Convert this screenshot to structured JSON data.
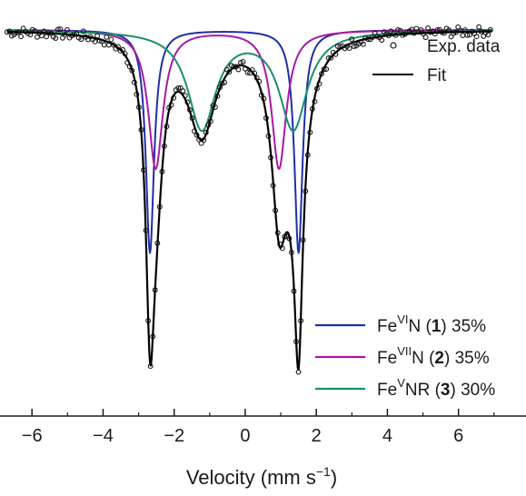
{
  "chart_data": {
    "type": "scatter",
    "xlabel": "Velocity (mm s",
    "xlabel_sup": "−1",
    "xlabel_end": ")",
    "xlim": [
      -6.9,
      7.9
    ],
    "ylim": [
      -1.02,
      0.04
    ],
    "xticks": [
      -6,
      -4,
      -2,
      0,
      2,
      4,
      6
    ],
    "xtick_labels": [
      "−6",
      "−4",
      "−2",
      "0",
      "2",
      "4",
      "6"
    ],
    "grid": false,
    "legend_top": {
      "placement": "top-right",
      "entries": [
        {
          "label": "Exp. data",
          "marker": "circle"
        },
        {
          "label": "Fit",
          "marker": "line",
          "color": "#000000"
        }
      ]
    },
    "legend_bottom": {
      "placement": "bottom-right",
      "entries": [
        {
          "pre": "Fe",
          "sup": "VI",
          "mid": "N (",
          "bold": "1",
          "post": ") 35%",
          "color": "#1f2fa8"
        },
        {
          "pre": "Fe",
          "sup": "VII",
          "mid": "N (",
          "bold": "2",
          "post": ") 35%",
          "color": "#a61aa6"
        },
        {
          "pre": "Fe",
          "sup": "V",
          "mid": "NR (",
          "bold": "3",
          "post": ") 30%",
          "color": "#1a8f6e"
        }
      ]
    },
    "components": [
      {
        "name": "FeVIN (1)",
        "color": "#1f2fa8",
        "fraction": 0.35,
        "lines": [
          {
            "center": -2.68,
            "width": 0.28,
            "depth": 0.66
          },
          {
            "center": 1.5,
            "width": 0.28,
            "depth": 0.66
          }
        ]
      },
      {
        "name": "FeVIIN (2)",
        "color": "#a61aa6",
        "fraction": 0.35,
        "lines": [
          {
            "center": -2.52,
            "width": 0.5,
            "depth": 0.41
          },
          {
            "center": 0.95,
            "width": 0.5,
            "depth": 0.41
          }
        ]
      },
      {
        "name": "FeVNR (3)",
        "color": "#1a8f6e",
        "fraction": 0.3,
        "lines": [
          {
            "center": -1.22,
            "width": 0.95,
            "depth": 0.29
          },
          {
            "center": 1.35,
            "width": 0.95,
            "depth": 0.29
          }
        ]
      }
    ],
    "fit": {
      "color": "#000000"
    },
    "exp_data": {
      "x_range": [
        -6.7,
        6.9
      ],
      "points": 210
    }
  }
}
